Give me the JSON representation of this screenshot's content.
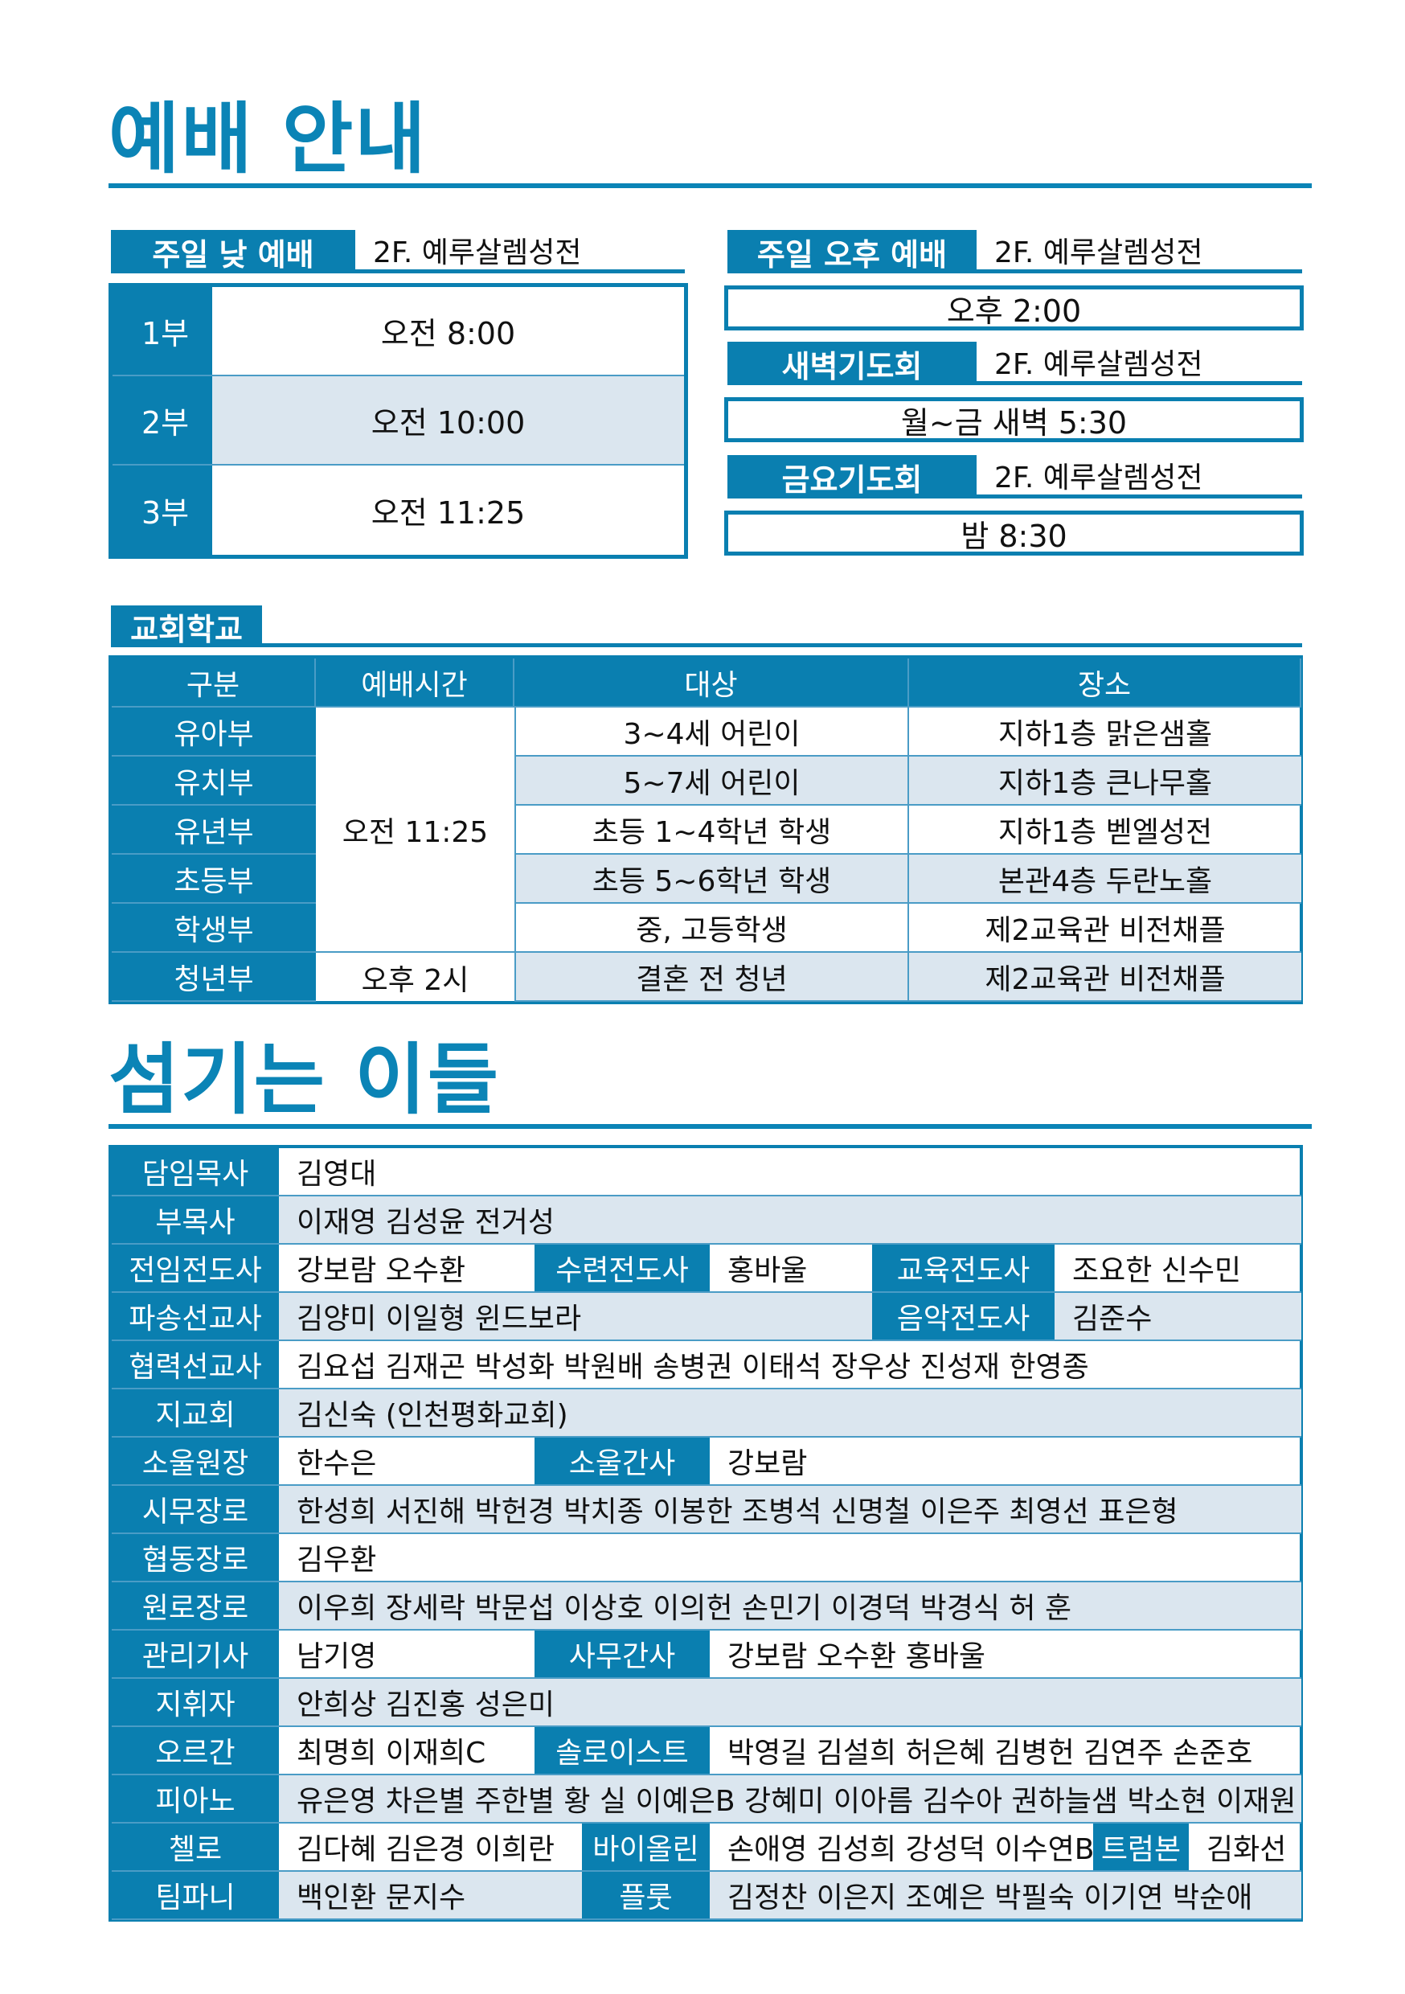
{
  "worship": {
    "title": "예배 안내",
    "sunday_morning": {
      "label": "주일 낮 예배",
      "location": "2F. 예루살렘성전",
      "services": [
        {
          "part": "1부",
          "time": "오전 8:00"
        },
        {
          "part": "2부",
          "time": "오전 10:00"
        },
        {
          "part": "3부",
          "time": "오전 11:25"
        }
      ]
    },
    "sunday_afternoon": {
      "label": "주일 오후 예배",
      "location": "2F. 예루살렘성전",
      "time": "오후 2:00"
    },
    "dawn_prayer": {
      "label": "새벽기도회",
      "location": "2F. 예루살렘성전",
      "time": "월~금 새벽 5:30"
    },
    "friday_prayer": {
      "label": "금요기도회",
      "location": "2F. 예루살렘성전",
      "time": "밤 8:30"
    }
  },
  "school": {
    "label": "교회학교",
    "headers": [
      "구분",
      "예배시간",
      "대상",
      "장소"
    ],
    "rows": [
      {
        "name": "유아부",
        "target": "3~4세 어린이",
        "place": "지하1층 맑은샘홀"
      },
      {
        "name": "유치부",
        "target": "5~7세 어린이",
        "place": "지하1층 큰나무홀"
      },
      {
        "name": "유년부",
        "target": "초등 1~4학년 학생",
        "place": "지하1층 벧엘성전"
      },
      {
        "name": "초등부",
        "target": "초등 5~6학년 학생",
        "place": "본관4층 두란노홀"
      },
      {
        "name": "학생부",
        "target": "중, 고등학생",
        "place": "제2교육관 비전채플"
      },
      {
        "name": "청년부",
        "target": "결혼 전 청년",
        "place": "제2교육관 비전채플"
      }
    ],
    "time_main": "오전 11:25",
    "time_youth": "오후 2시"
  },
  "staff": {
    "title": "섬기는 이들",
    "rows": [
      [
        "담임목사",
        "김영대"
      ],
      [
        "부목사",
        "이재영 김성윤 전거성"
      ],
      [
        "전임전도사",
        "강보람 오수환",
        "수련전도사",
        "홍바울",
        "교육전도사",
        "조요한 신수민"
      ],
      [
        "파송선교사",
        "김양미 이일형 윈드보라",
        "음악전도사",
        "김준수"
      ],
      [
        "협력선교사",
        "김요섭 김재곤 박성화 박원배 송병권 이태석 장우상 진성재 한영종"
      ],
      [
        "지교회",
        "김신숙 (인천평화교회)"
      ],
      [
        "소울원장",
        "한수은",
        "소울간사",
        "강보람"
      ],
      [
        "시무장로",
        "한성희 서진해 박헌경 박치종 이봉한 조병석 신명철 이은주 최영선 표은형"
      ],
      [
        "협동장로",
        "김우환"
      ],
      [
        "원로장로",
        "이우희 장세락 박문섭 이상호 이의헌 손민기 이경덕 박경식 허  훈"
      ],
      [
        "관리기사",
        "남기영",
        "사무간사",
        "강보람 오수환 홍바울"
      ],
      [
        "지휘자",
        "안희상 김진홍 성은미"
      ],
      [
        "오르간",
        "최명희 이재희C",
        "솔로이스트",
        "박영길 김설희 허은혜 김병헌 김연주 손준호"
      ],
      [
        "피아노",
        "유은영 차은별 주한별 황 실 이예은B 강혜미 이아름 김수아 권하늘샘 박소현 이재원 박 진"
      ],
      [
        "첼로",
        "김다혜 김은경 이희란",
        "바이올린",
        "손애영 김성희 강성덕 이수연B",
        "트럼본",
        "김화선"
      ],
      [
        "팀파니",
        "백인환 문지수",
        "플룻",
        "김정찬 이은지 조예은 박필숙 이기연 박순애"
      ]
    ]
  },
  "colors": {
    "accent": "#0a7fb0",
    "row_light": "#dbe6ef",
    "title": "#0b84b6"
  }
}
